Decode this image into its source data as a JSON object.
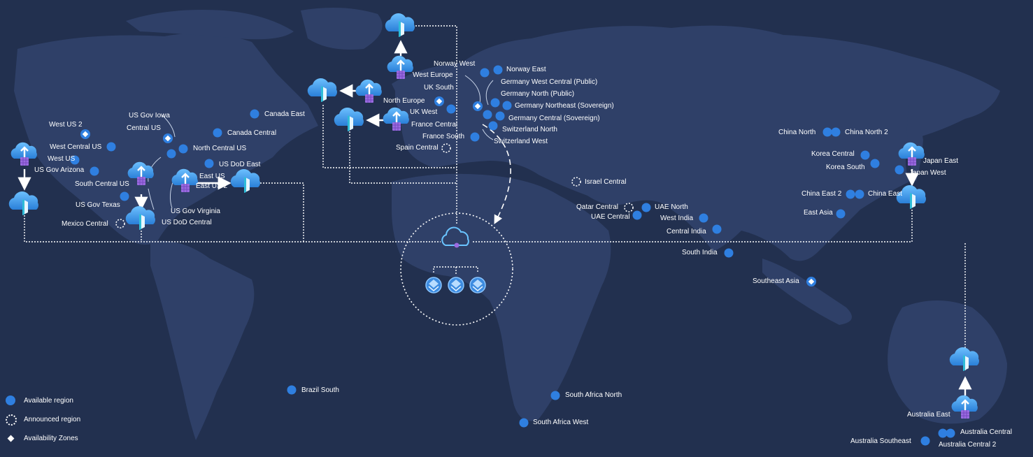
{
  "colors": {
    "background": "#22304f",
    "land": "#2f4068",
    "available": "#2f7fe0",
    "announced": "#ffffff",
    "zone": "#ffffff",
    "cloud": "#4aa3ef"
  },
  "legend": {
    "available": "Available region",
    "announced": "Announced region",
    "zones": "Availability Zones"
  },
  "regions": {
    "norway_west": "Norway West",
    "norway_east": "Norway East",
    "west_europe": "West Europe",
    "germany_west_central": "Germany West Central (Public)",
    "uk_south": "UK South",
    "germany_north": "Germany North (Public)",
    "north_europe": "North Europe",
    "germany_northeast": "Germany Northeast (Sovereign)",
    "uk_west": "UK West",
    "germany_central": "Germany Central (Sovereign)",
    "france_central": "France Central",
    "switzerland_north": "Switzerland North",
    "france_south": "France South",
    "switzerland_west": "Switzerland West",
    "spain_central": "Spain Central",
    "canada_east": "Canada East",
    "us_gov_iowa": "US Gov Iowa",
    "central_us": "Central US",
    "canada_central": "Canada Central",
    "west_us_2": "West US 2",
    "west_central_us": "West Central US",
    "north_central_us": "North Central US",
    "west_us": "West US",
    "us_dod_east": "US DoD East",
    "us_gov_arizona": "US Gov Arizona",
    "east_us": "East US",
    "south_central_us": "South Central US",
    "east_us_2": "East US 2",
    "us_gov_texas": "US Gov Texas",
    "us_gov_virginia": "US Gov Virginia",
    "mexico_central": "Mexico Central",
    "us_dod_central": "US DoD Central",
    "brazil_south": "Brazil South",
    "israel_central": "Israel Central",
    "qatar_central": "Qatar Central",
    "uae_north": "UAE North",
    "uae_central": "UAE Central",
    "west_india": "West India",
    "central_india": "Central India",
    "south_india": "South India",
    "south_africa_north": "South Africa North",
    "south_africa_west": "South Africa West",
    "china_north": "China North",
    "china_north_2": "China North 2",
    "korea_central": "Korea Central",
    "korea_south": "Korea South",
    "japan_east": "Japan East",
    "japan_west": "Japan West",
    "china_east_2": "China East 2",
    "china_east": "China East",
    "east_asia": "East Asia",
    "southeast_asia": "Southeast Asia",
    "australia_east": "Australia East",
    "australia_central": "Australia Central",
    "australia_southeast": "Australia Southeast",
    "australia_central_2": "Australia Central 2"
  }
}
